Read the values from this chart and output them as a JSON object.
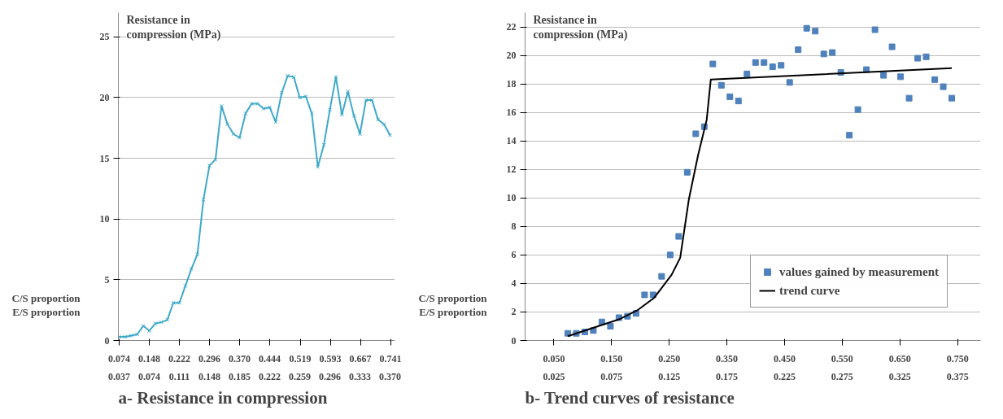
{
  "chart_data": [
    {
      "type": "line",
      "title": "a- Resistance in compression",
      "ylabel": "Resistance in compression (MPa)",
      "annotations": [
        "C/S proportion",
        "E/S proportion"
      ],
      "x": [
        0.074,
        0.0888,
        0.1036,
        0.1184,
        0.1332,
        0.148,
        0.1628,
        0.1776,
        0.1924,
        0.2072,
        0.222,
        0.2368,
        0.2516,
        0.2664,
        0.2812,
        0.296,
        0.3108,
        0.3256,
        0.3404,
        0.3552,
        0.37,
        0.3848,
        0.3996,
        0.4144,
        0.4292,
        0.444,
        0.4588,
        0.4736,
        0.4884,
        0.5032,
        0.518,
        0.5328,
        0.5476,
        0.5624,
        0.5772,
        0.592,
        0.6068,
        0.6216,
        0.6364,
        0.6512,
        0.666,
        0.6808,
        0.6956,
        0.7104,
        0.7252,
        0.74
      ],
      "series": [
        {
          "color": "#3fa9c9",
          "values": [
            0.3,
            0.3,
            0.4,
            0.5,
            1.2,
            0.8,
            1.4,
            1.5,
            1.7,
            3.1,
            3.1,
            4.5,
            5.9,
            7.1,
            11.6,
            14.4,
            14.9,
            19.3,
            17.8,
            17.0,
            16.7,
            18.7,
            19.5,
            19.5,
            19.1,
            19.2,
            18.0,
            20.4,
            21.8,
            21.7,
            20.0,
            20.1,
            18.7,
            14.3,
            16.1,
            19.0,
            21.7,
            18.6,
            20.5,
            18.5,
            17.0,
            19.8,
            19.8,
            18.2,
            17.8,
            16.9
          ]
        }
      ],
      "xlim": [
        0.072,
        0.752
      ],
      "ylim": [
        0,
        27
      ],
      "xticks": [
        0.074,
        0.148,
        0.222,
        0.296,
        {
          "value": 0.37,
          "label": "0.370"
        },
        0.444,
        0.519,
        0.593,
        0.667,
        0.741
      ],
      "x2lim": [
        0.036,
        0.376
      ],
      "x2ticks": [
        0.037,
        0.074,
        0.111,
        0.148,
        0.185,
        0.222,
        0.259,
        0.296,
        0.333,
        {
          "value": 0.37,
          "label": "0.370"
        }
      ],
      "yticks": [
        0,
        5,
        10,
        15,
        20,
        25
      ],
      "grid": "y",
      "marker": "cross",
      "line_style": "solid"
    },
    {
      "type": "scatter",
      "title": "b- Trend curves of resistance",
      "ylabel": "Resistance in compression (MPa)",
      "annotations": [
        "C/S proportion",
        "E/S proportion"
      ],
      "x": [
        0.074,
        0.0888,
        0.1036,
        0.1184,
        0.1332,
        0.148,
        0.1628,
        0.1776,
        0.1924,
        0.2072,
        0.222,
        0.2368,
        0.2516,
        0.2664,
        0.2812,
        0.296,
        0.3108,
        0.3256,
        0.3404,
        0.3552,
        0.37,
        0.3848,
        0.3996,
        0.4144,
        0.4292,
        0.444,
        0.4588,
        0.4736,
        0.4884,
        0.5032,
        0.518,
        0.5328,
        0.5476,
        0.5624,
        0.5772,
        0.592,
        0.6068,
        0.6216,
        0.6364,
        0.6512,
        0.666,
        0.6808,
        0.6956,
        0.7104,
        0.7252,
        0.74
      ],
      "series": [
        {
          "name": "values gained by measurement",
          "color": "#4f81bd",
          "marker": "square",
          "values": [
            0.5,
            0.5,
            0.6,
            0.7,
            1.3,
            1.0,
            1.6,
            1.7,
            1.9,
            3.2,
            3.2,
            4.5,
            6.0,
            7.3,
            11.8,
            14.5,
            15.0,
            19.4,
            17.9,
            17.1,
            16.8,
            18.7,
            19.5,
            19.5,
            19.2,
            19.3,
            18.1,
            20.4,
            21.9,
            21.7,
            20.1,
            20.2,
            18.8,
            14.4,
            16.2,
            19.0,
            21.8,
            18.6,
            20.6,
            18.5,
            17.0,
            19.8,
            19.9,
            18.3,
            17.8,
            17.0
          ]
        },
        {
          "name": "trend curve",
          "type": "line",
          "color": "#000000",
          "x": [
            0.074,
            0.119,
            0.164,
            0.194,
            0.224,
            0.254,
            0.269,
            0.284,
            0.3,
            0.315,
            0.322,
            0.74
          ],
          "values": [
            0.3,
            0.9,
            1.5,
            2.1,
            3.0,
            4.6,
            5.8,
            9.9,
            13.0,
            15.5,
            18.3,
            19.1
          ]
        }
      ],
      "xlim": [
        0,
        0.79
      ],
      "ylim": [
        0,
        23
      ],
      "xticks": [
        {
          "value": 0.05,
          "label": "0.050"
        },
        {
          "value": 0.15,
          "label": "0.150"
        },
        {
          "value": 0.25,
          "label": "0.250"
        },
        {
          "value": 0.35,
          "label": "0.350"
        },
        {
          "value": 0.45,
          "label": "0.450"
        },
        {
          "value": 0.55,
          "label": "0.550"
        },
        {
          "value": 0.65,
          "label": "0.650"
        },
        {
          "value": 0.75,
          "label": "0.750"
        }
      ],
      "x2lim": [
        0,
        0.395
      ],
      "x2ticks": [
        0.025,
        0.075,
        0.125,
        0.175,
        0.225,
        0.275,
        0.325,
        0.375
      ],
      "yticks": [
        0,
        2,
        4,
        6,
        8,
        10,
        12,
        14,
        16,
        18,
        20,
        22
      ],
      "grid": "y",
      "legend": "bottom right"
    }
  ]
}
